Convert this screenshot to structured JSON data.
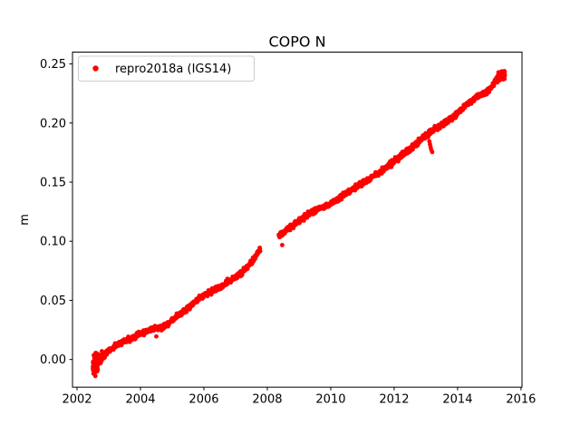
{
  "figure": {
    "background": "#ffffff",
    "axes_facecolor": "#ffffff",
    "spine_color": "#000000"
  },
  "chart_data": {
    "type": "scatter",
    "title": "COPO N",
    "xlabel": "",
    "ylabel": "m",
    "grid": false,
    "legend": {
      "position": "upper left",
      "label": "repro2018a (IGS14)",
      "marker": "dot-icon",
      "marker_color": "#ff0000",
      "border_color": "#cccccc",
      "background": "rgba(255,255,255,0.85)"
    },
    "xlim": [
      2001.857,
      2016.031
    ],
    "ylim": [
      -0.0234,
      0.26
    ],
    "x_ticks": [
      {
        "value": 2002,
        "label": "2002"
      },
      {
        "value": 2004,
        "label": "2004"
      },
      {
        "value": 2006,
        "label": "2006"
      },
      {
        "value": 2008,
        "label": "2008"
      },
      {
        "value": 2010,
        "label": "2010"
      },
      {
        "value": 2012,
        "label": "2012"
      },
      {
        "value": 2014,
        "label": "2014"
      },
      {
        "value": 2016,
        "label": "2016"
      }
    ],
    "y_ticks": [
      {
        "value": 0.0,
        "label": "0.00"
      },
      {
        "value": 0.05,
        "label": "0.05"
      },
      {
        "value": 0.1,
        "label": "0.10"
      },
      {
        "value": 0.15,
        "label": "0.15"
      },
      {
        "value": 0.2,
        "label": "0.20"
      },
      {
        "value": 0.25,
        "label": "0.25"
      }
    ],
    "series": [
      {
        "name": "repro2018a (IGS14)",
        "color": "#ff0000",
        "marker": "dot",
        "marker_radius_px": 2.4,
        "trend_segments": [
          {
            "anchors": [
              [
                2002.52,
                -0.0045
              ],
              [
                2002.7,
                -0.0008
              ],
              [
                2002.9,
                0.0048
              ],
              [
                2003.1,
                0.0096
              ],
              [
                2003.3,
                0.0132
              ],
              [
                2003.5,
                0.015
              ],
              [
                2003.7,
                0.017
              ],
              [
                2003.9,
                0.0205
              ],
              [
                2004.1,
                0.0232
              ],
              [
                2004.3,
                0.0252
              ],
              [
                2004.5,
                0.0258
              ],
              [
                2004.7,
                0.027
              ],
              [
                2004.9,
                0.0305
              ],
              [
                2005.1,
                0.0355
              ],
              [
                2005.3,
                0.0395
              ],
              [
                2005.5,
                0.0435
              ],
              [
                2005.7,
                0.0478
              ],
              [
                2005.9,
                0.0525
              ],
              [
                2006.1,
                0.0558
              ],
              [
                2006.3,
                0.0585
              ],
              [
                2006.5,
                0.0612
              ],
              [
                2006.7,
                0.0648
              ],
              [
                2006.9,
                0.0682
              ],
              [
                2007.1,
                0.0718
              ],
              [
                2007.3,
                0.076
              ],
              [
                2007.5,
                0.0818
              ],
              [
                2007.65,
                0.0878
              ],
              [
                2007.78,
                0.0935
              ]
            ],
            "noise_sd": 0.0011,
            "noise_zones": [
              {
                "t0": 2002.5,
                "t1": 2002.8,
                "sd": 0.0033
              }
            ]
          },
          {
            "anchors": [
              [
                2008.36,
                0.1045
              ],
              [
                2008.7,
                0.1115
              ],
              [
                2009.0,
                0.117
              ],
              [
                2009.3,
                0.1228
              ],
              [
                2009.6,
                0.1272
              ],
              [
                2009.85,
                0.13
              ],
              [
                2010.1,
                0.1335
              ],
              [
                2010.35,
                0.138
              ],
              [
                2010.6,
                0.1425
              ],
              [
                2010.9,
                0.1475
              ],
              [
                2011.2,
                0.1525
              ],
              [
                2011.5,
                0.1578
              ],
              [
                2011.8,
                0.1635
              ],
              [
                2012.1,
                0.1695
              ],
              [
                2012.4,
                0.1762
              ],
              [
                2012.7,
                0.1828
              ],
              [
                2012.95,
                0.1885
              ],
              [
                2013.15,
                0.1928
              ],
              [
                2013.4,
                0.1968
              ],
              [
                2013.65,
                0.2005
              ],
              [
                2013.9,
                0.2062
              ],
              [
                2014.15,
                0.2122
              ],
              [
                2014.4,
                0.218
              ],
              [
                2014.6,
                0.2218
              ],
              [
                2014.8,
                0.2242
              ],
              [
                2015.0,
                0.2282
              ],
              [
                2015.15,
                0.2335
              ],
              [
                2015.28,
                0.239
              ],
              [
                2015.49,
                0.242
              ]
            ],
            "noise_sd": 0.0011,
            "noise_zones": [
              {
                "t0": 2015.22,
                "t1": 2015.5,
                "sd": 0.0018
              }
            ]
          }
        ],
        "data_gap": [
          2007.78,
          2008.36
        ],
        "outlier_points": [
          [
            2004.5,
            0.0195
          ],
          [
            2008.47,
            0.0968
          ],
          [
            2013.07,
            0.188
          ],
          [
            2013.11,
            0.1845
          ],
          [
            2013.13,
            0.182
          ],
          [
            2013.15,
            0.1796
          ],
          [
            2013.17,
            0.1774
          ],
          [
            2013.2,
            0.1754
          ]
        ],
        "dense_clusters": [
          {
            "t0": 2002.5,
            "t1": 2002.67,
            "n": 80,
            "sd": 0.0042,
            "dy": -0.001
          },
          {
            "t0": 2015.3,
            "t1": 2015.49,
            "n": 60,
            "sd": 0.0019,
            "dy": 0.0
          }
        ],
        "sampling": {
          "t_step": 0.008,
          "seed": 20180101
        }
      }
    ]
  }
}
